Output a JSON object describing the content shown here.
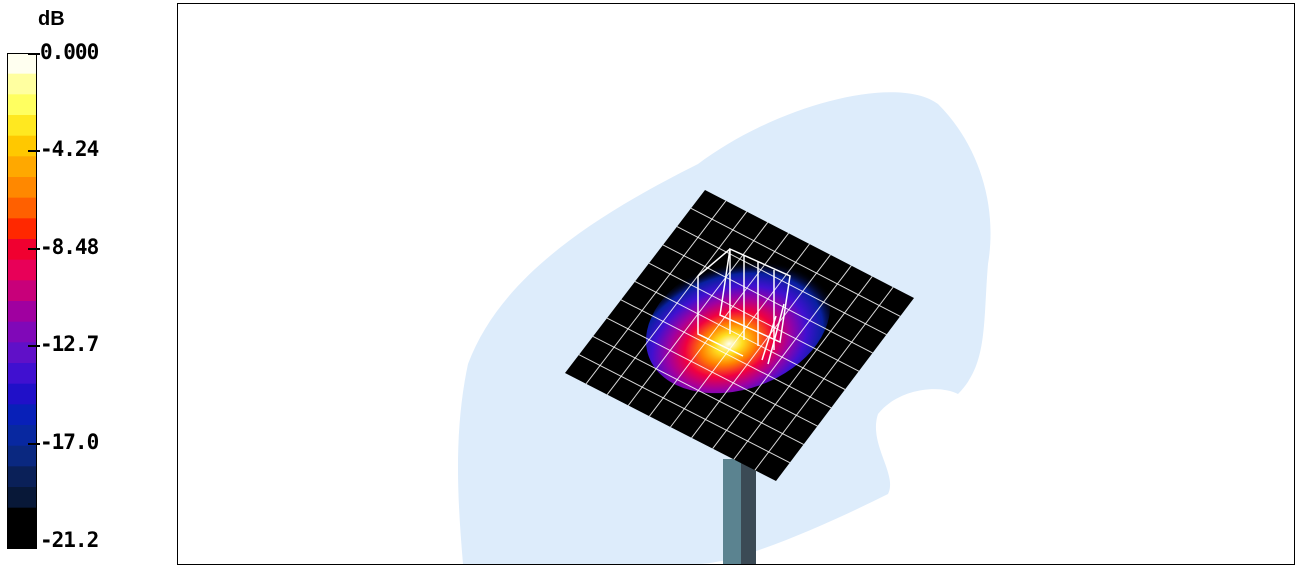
{
  "legend": {
    "unit": "dB",
    "ticks": [
      "0.000",
      "-4.24",
      "-8.48",
      "-12.7",
      "-17.0",
      "-21.2"
    ],
    "colors": [
      "#fffff0",
      "#ffffa0",
      "#ffff60",
      "#ffe820",
      "#ffc800",
      "#ffa800",
      "#ff8800",
      "#ff6000",
      "#ff2800",
      "#f00030",
      "#e80058",
      "#c8007a",
      "#a000a0",
      "#8008b8",
      "#6010c8",
      "#4010d0",
      "#2010c8",
      "#0820b8",
      "#0828a0",
      "#0a2880",
      "#0a2058",
      "#081838",
      "#000000",
      "#000000"
    ]
  },
  "scene": {
    "background_lobe_color": "#ddecfb",
    "plate_color": "#000000",
    "grid_color": "#ffffff",
    "pole_colors": [
      "#5b8390",
      "#3b4a55"
    ]
  }
}
